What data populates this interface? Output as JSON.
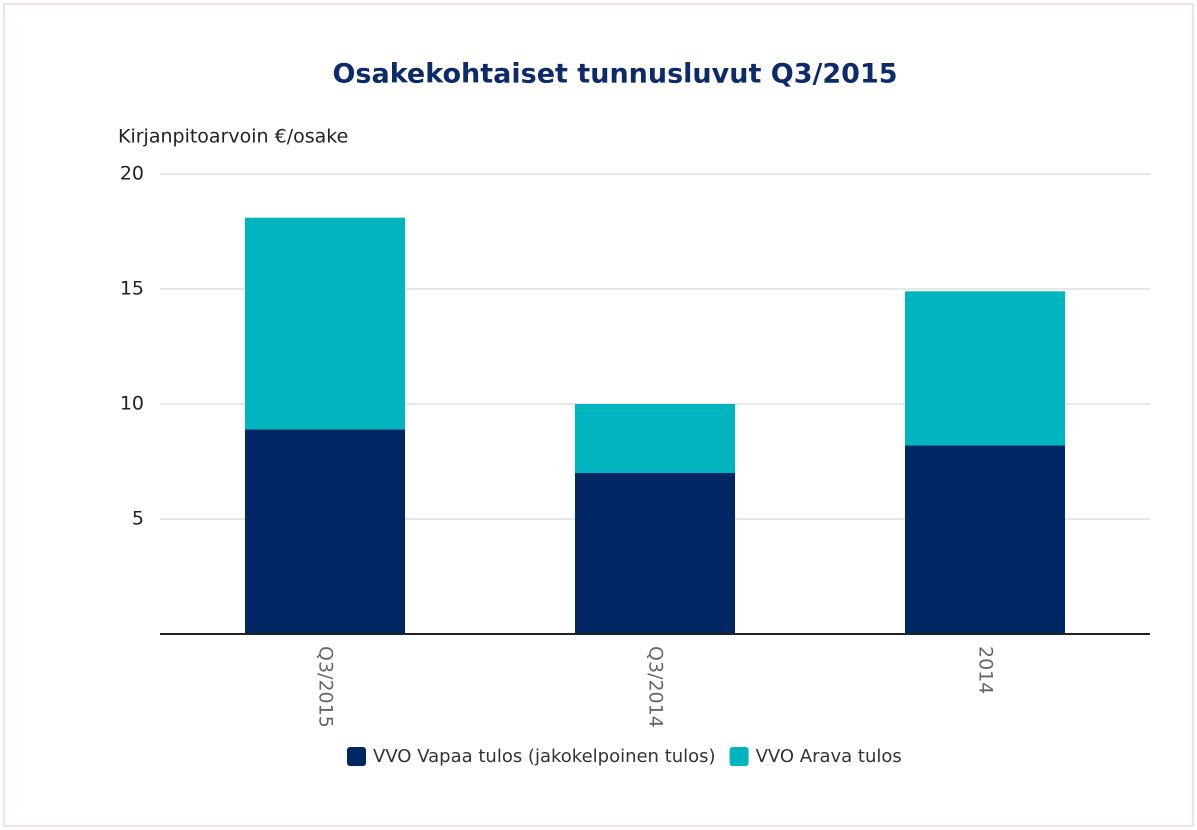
{
  "chart_data": {
    "type": "stacked_bar",
    "title": "Osakekohtaiset tunnusluvut Q3/2015",
    "y_label": "Kirjanpitoarvoin €/osake",
    "categories": [
      "Q3/2015",
      "Q3/2014",
      "2014"
    ],
    "series": [
      {
        "name": "VVO Vapaa tulos (jakokelpoinen tulos)",
        "color": "#002663",
        "values": [
          8.9,
          7.0,
          8.2
        ]
      },
      {
        "name": "VVO Arava tulos",
        "color": "#00b5bd",
        "values": [
          9.2,
          3.0,
          6.7
        ]
      }
    ],
    "ylim": [
      0,
      20
    ],
    "yticks": [
      5,
      10,
      15,
      20
    ],
    "grid": true,
    "legend": "bottom"
  }
}
